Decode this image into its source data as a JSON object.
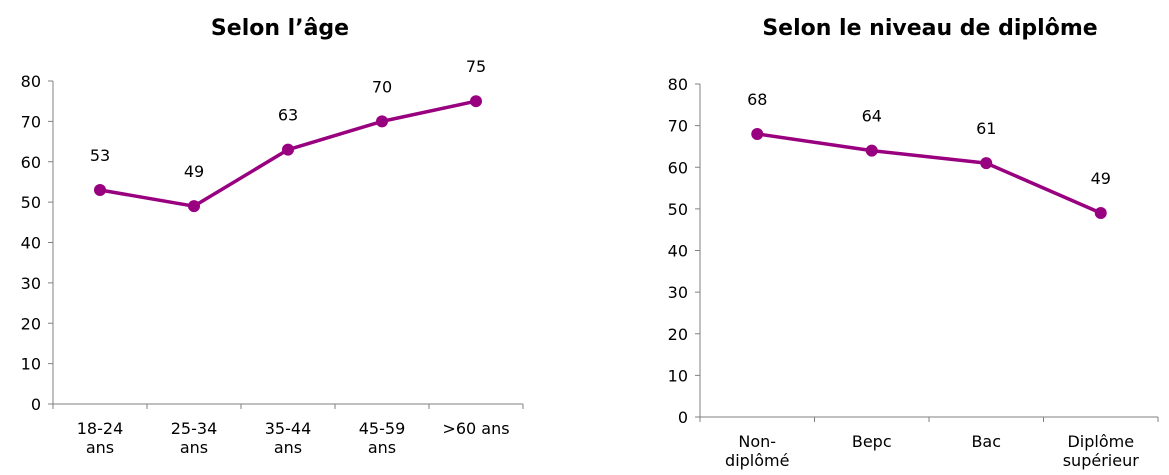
{
  "chart_data": [
    {
      "type": "line",
      "title": "Selon l’âge",
      "categories": [
        [
          "18-24",
          "ans"
        ],
        [
          "25-34",
          "ans"
        ],
        [
          "35-44",
          "ans"
        ],
        [
          "45-59",
          "ans"
        ],
        [
          ">60 ans"
        ]
      ],
      "values": [
        53,
        49,
        63,
        70,
        75
      ],
      "data_labels": [
        "53",
        "49",
        "63",
        "70",
        "75"
      ],
      "ylim": [
        0,
        80
      ],
      "yticks": [
        "0",
        "10",
        "20",
        "30",
        "40",
        "50",
        "60",
        "70",
        "80"
      ],
      "grid": false,
      "color": "#990080"
    },
    {
      "type": "line",
      "title": "Selon le niveau de diplôme",
      "categories": [
        [
          "Non-",
          "diplômé"
        ],
        [
          "Bepc"
        ],
        [
          "Bac"
        ],
        [
          "Diplôme",
          "supérieur"
        ]
      ],
      "values": [
        68,
        64,
        61,
        49
      ],
      "data_labels": [
        "68",
        "64",
        "61",
        "49"
      ],
      "ylim": [
        0,
        80
      ],
      "yticks": [
        "0",
        "10",
        "20",
        "30",
        "40",
        "50",
        "60",
        "70",
        "80"
      ],
      "grid": false,
      "color": "#990080"
    }
  ]
}
